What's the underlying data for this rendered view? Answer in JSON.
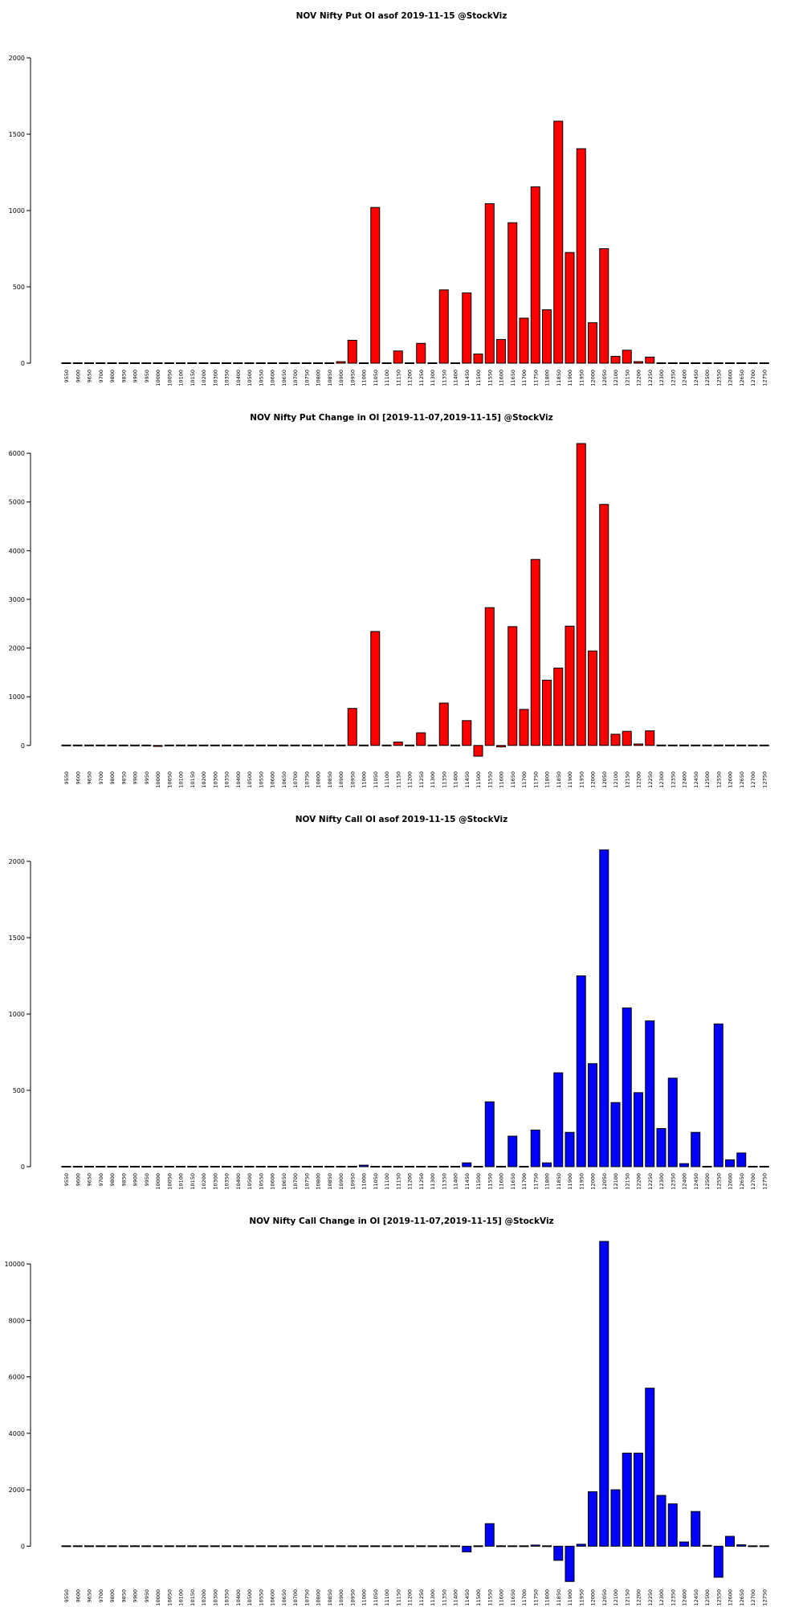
{
  "chart_data": [
    {
      "type": "bar",
      "title": "NOV Nifty Put OI asof 2019-11-15 @StockViz",
      "xlabel": "",
      "ylabel": "",
      "ylim": [
        0,
        2000
      ],
      "yticks": [
        0,
        500,
        1000,
        1500,
        2000
      ],
      "color": "#ff0000",
      "categories": [
        "9550",
        "9600",
        "9650",
        "9700",
        "9800",
        "9850",
        "9900",
        "9950",
        "10000",
        "10050",
        "10100",
        "10150",
        "10200",
        "10300",
        "10350",
        "10400",
        "10500",
        "10550",
        "10600",
        "10650",
        "10700",
        "10750",
        "10800",
        "10850",
        "10900",
        "10950",
        "11000",
        "11050",
        "11100",
        "11150",
        "11200",
        "11250",
        "11300",
        "11350",
        "11400",
        "11450",
        "11500",
        "11550",
        "11600",
        "11650",
        "11700",
        "11750",
        "11800",
        "11850",
        "11900",
        "11950",
        "12000",
        "12050",
        "12100",
        "12150",
        "12200",
        "12250",
        "12300",
        "12350",
        "12400",
        "12450",
        "12500",
        "12550",
        "12600",
        "12650",
        "12700",
        "12750"
      ],
      "values": [
        0,
        0,
        0,
        0,
        0,
        0,
        0,
        0,
        0,
        0,
        0,
        0,
        0,
        0,
        0,
        0,
        0,
        0,
        0,
        0,
        0,
        0,
        0,
        0,
        10,
        150,
        0,
        1020,
        0,
        80,
        0,
        130,
        0,
        480,
        0,
        460,
        60,
        1045,
        155,
        920,
        295,
        1155,
        350,
        1585,
        725,
        1405,
        265,
        750,
        45,
        85,
        10,
        40,
        0,
        0,
        0,
        0,
        0,
        0,
        0,
        0,
        0,
        0
      ]
    },
    {
      "type": "bar",
      "title": "NOV Nifty Put Change in OI [2019-11-07,2019-11-15] @StockViz",
      "xlabel": "",
      "ylabel": "",
      "ylim": [
        -400,
        6200
      ],
      "yticks": [
        0,
        1000,
        2000,
        3000,
        4000,
        5000,
        6000
      ],
      "color": "#ff0000",
      "categories": [
        "9550",
        "9600",
        "9650",
        "9700",
        "9800",
        "9850",
        "9900",
        "9950",
        "10000",
        "10050",
        "10100",
        "10150",
        "10200",
        "10300",
        "10350",
        "10400",
        "10500",
        "10550",
        "10600",
        "10650",
        "10700",
        "10750",
        "10800",
        "10850",
        "10900",
        "10950",
        "11000",
        "11050",
        "11100",
        "11150",
        "11200",
        "11250",
        "11300",
        "11350",
        "11400",
        "11450",
        "11500",
        "11550",
        "11600",
        "11650",
        "11700",
        "11750",
        "11800",
        "11850",
        "11900",
        "11950",
        "12000",
        "12050",
        "12100",
        "12150",
        "12200",
        "12250",
        "12300",
        "12350",
        "12400",
        "12450",
        "12500",
        "12550",
        "12600",
        "12650",
        "12700",
        "12750"
      ],
      "values": [
        0,
        0,
        0,
        0,
        0,
        0,
        0,
        0,
        -20,
        0,
        0,
        0,
        0,
        0,
        0,
        0,
        0,
        0,
        0,
        0,
        0,
        0,
        0,
        0,
        15,
        760,
        0,
        2340,
        0,
        70,
        0,
        260,
        0,
        870,
        0,
        510,
        -220,
        2830,
        -30,
        2440,
        740,
        3820,
        1340,
        1590,
        2450,
        6200,
        1940,
        4950,
        230,
        290,
        30,
        300,
        0,
        0,
        0,
        0,
        0,
        0,
        0,
        0,
        0,
        0
      ]
    },
    {
      "type": "bar",
      "title": "NOV Nifty Call OI asof 2019-11-15 @StockViz",
      "xlabel": "",
      "ylabel": "",
      "ylim": [
        0,
        2000
      ],
      "yticks": [
        0,
        500,
        1000,
        1500,
        2000
      ],
      "color": "#0000ff",
      "categories": [
        "9550",
        "9600",
        "9650",
        "9700",
        "9800",
        "9850",
        "9900",
        "9950",
        "10000",
        "10050",
        "10100",
        "10150",
        "10200",
        "10300",
        "10350",
        "10400",
        "10500",
        "10550",
        "10600",
        "10650",
        "10700",
        "10750",
        "10800",
        "10850",
        "10900",
        "10950",
        "11000",
        "11050",
        "11100",
        "11150",
        "11200",
        "11250",
        "11300",
        "11350",
        "11400",
        "11450",
        "11500",
        "11550",
        "11600",
        "11650",
        "11700",
        "11750",
        "11800",
        "11850",
        "11900",
        "11950",
        "12000",
        "12050",
        "12100",
        "12150",
        "12200",
        "12250",
        "12300",
        "12350",
        "12400",
        "12450",
        "12500",
        "12550",
        "12600",
        "12650",
        "12700",
        "12750"
      ],
      "values": [
        0,
        0,
        0,
        0,
        0,
        0,
        0,
        0,
        0,
        0,
        0,
        0,
        0,
        0,
        0,
        0,
        0,
        0,
        0,
        0,
        0,
        0,
        0,
        0,
        0,
        0,
        10,
        5,
        0,
        0,
        0,
        0,
        0,
        0,
        0,
        25,
        0,
        425,
        0,
        200,
        0,
        240,
        25,
        615,
        225,
        1250,
        675,
        2075,
        420,
        1040,
        485,
        955,
        250,
        580,
        20,
        225,
        5,
        935,
        45,
        90,
        0,
        0
      ]
    },
    {
      "type": "bar",
      "title": "NOV Nifty Call Change in OI [2019-11-07,2019-11-15] @StockViz",
      "xlabel": "",
      "ylabel": "",
      "ylim": [
        -1300,
        10800
      ],
      "yticks": [
        0,
        2000,
        4000,
        6000,
        8000,
        10000
      ],
      "color": "#0000ff",
      "categories": [
        "9550",
        "9600",
        "9650",
        "9700",
        "9800",
        "9850",
        "9900",
        "9950",
        "10000",
        "10050",
        "10100",
        "10150",
        "10200",
        "10300",
        "10350",
        "10400",
        "10500",
        "10550",
        "10600",
        "10650",
        "10700",
        "10750",
        "10800",
        "10850",
        "10900",
        "10950",
        "11000",
        "11050",
        "11100",
        "11150",
        "11200",
        "11250",
        "11300",
        "11350",
        "11400",
        "11450",
        "11500",
        "11550",
        "11600",
        "11650",
        "11700",
        "11750",
        "11800",
        "11850",
        "11900",
        "11950",
        "12000",
        "12050",
        "12100",
        "12150",
        "12200",
        "12250",
        "12300",
        "12350",
        "12400",
        "12450",
        "12500",
        "12550",
        "12600",
        "12650",
        "12700",
        "12750"
      ],
      "values": [
        0,
        0,
        0,
        0,
        0,
        0,
        0,
        0,
        0,
        0,
        0,
        0,
        0,
        0,
        0,
        0,
        0,
        0,
        0,
        0,
        0,
        0,
        0,
        0,
        0,
        0,
        0,
        0,
        0,
        0,
        0,
        0,
        0,
        0,
        0,
        -200,
        0,
        800,
        0,
        0,
        0,
        40,
        0,
        -500,
        -1250,
        70,
        1930,
        10800,
        2000,
        3300,
        3300,
        5600,
        1800,
        1500,
        150,
        1230,
        30,
        -1100,
        350,
        50,
        0,
        0
      ]
    }
  ]
}
